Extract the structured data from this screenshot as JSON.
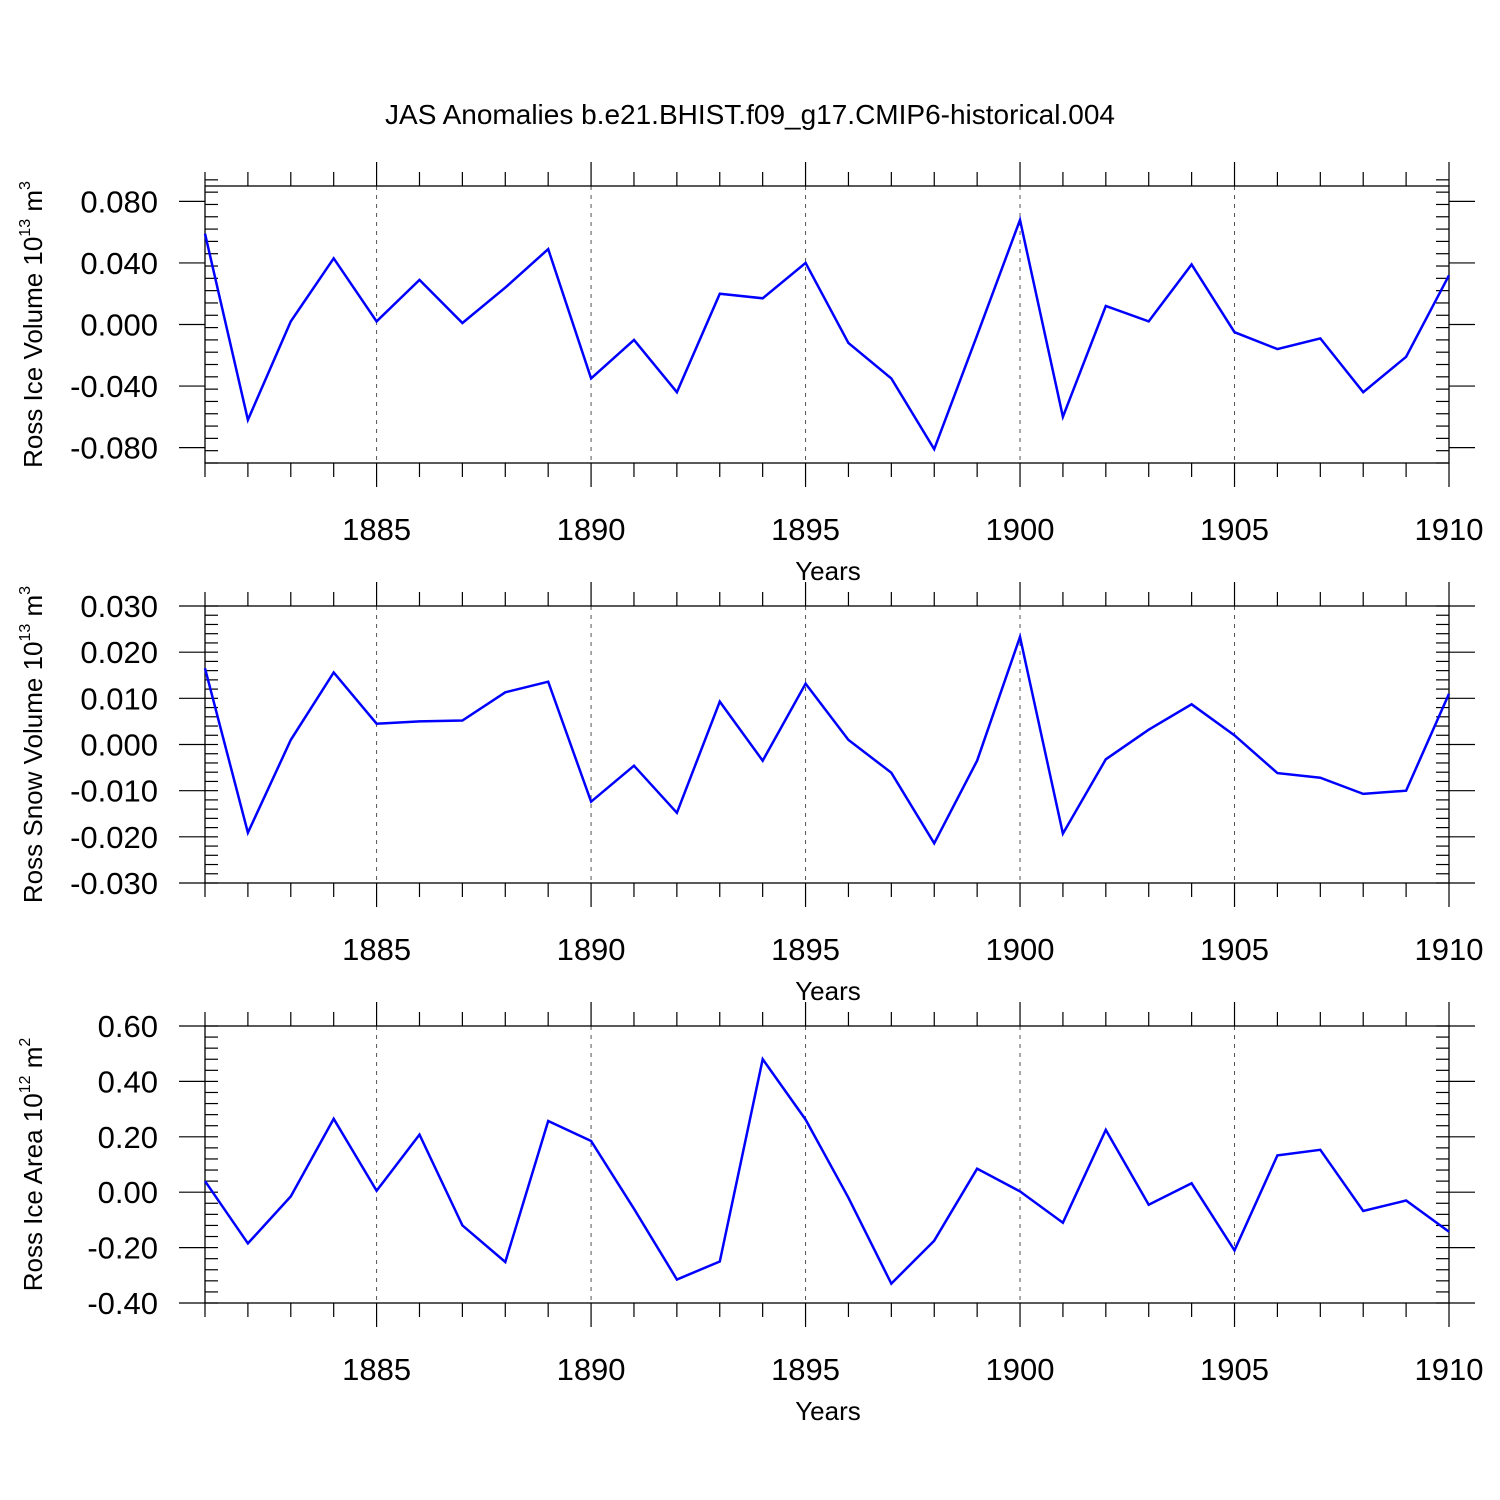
{
  "figure": {
    "title": "JAS Anomalies b.e21.BHIST.f09_g17.CMIP6-historical.004"
  },
  "chart_data": [
    {
      "type": "line",
      "xlabel": "Years",
      "ylabel": "Ross Ice Volume 10",
      "ylabel_exponent": "13",
      "ylabel_unit": "m",
      "ylabel_unit_exponent": "3",
      "xlim": [
        1881,
        1910
      ],
      "ylim": [
        -0.09,
        0.09
      ],
      "xticks": [
        1885,
        1890,
        1895,
        1900,
        1905,
        1910
      ],
      "xtick_labels": [
        "1885",
        "1890",
        "1895",
        "1900",
        "1905",
        "1910"
      ],
      "yticks": [
        -0.08,
        -0.04,
        0.0,
        0.04,
        0.08
      ],
      "ytick_labels": [
        "-0.080",
        "-0.040",
        "0.000",
        "0.040",
        "0.080"
      ],
      "yminor_step": 0.008,
      "grid": "vertical dashed at major x ticks",
      "series_color": "#0000ff",
      "x": [
        1881,
        1882,
        1883,
        1884,
        1885,
        1886,
        1887,
        1888,
        1889,
        1890,
        1891,
        1892,
        1893,
        1894,
        1895,
        1896,
        1897,
        1898,
        1899,
        1900,
        1901,
        1902,
        1903,
        1904,
        1905,
        1906,
        1907,
        1908,
        1909,
        1910
      ],
      "values": [
        0.059,
        -0.062,
        0.002,
        0.043,
        0.002,
        0.029,
        0.001,
        0.024,
        0.049,
        -0.035,
        -0.01,
        -0.044,
        0.02,
        0.017,
        0.04,
        -0.012,
        -0.035,
        -0.081,
        -0.007,
        0.068,
        -0.06,
        0.012,
        0.002,
        0.039,
        -0.005,
        -0.016,
        -0.009,
        -0.044,
        -0.021,
        0.032
      ]
    },
    {
      "type": "line",
      "xlabel": "Years",
      "ylabel": "Ross Snow Volume 10",
      "ylabel_exponent": "13",
      "ylabel_unit": "m",
      "ylabel_unit_exponent": "3",
      "xlim": [
        1881,
        1910
      ],
      "ylim": [
        -0.03,
        0.03
      ],
      "xticks": [
        1885,
        1890,
        1895,
        1900,
        1905,
        1910
      ],
      "xtick_labels": [
        "1885",
        "1890",
        "1895",
        "1900",
        "1905",
        "1910"
      ],
      "yticks": [
        -0.03,
        -0.02,
        -0.01,
        0.0,
        0.01,
        0.02,
        0.03
      ],
      "ytick_labels": [
        "-0.030",
        "-0.020",
        "-0.010",
        "0.000",
        "0.010",
        "0.020",
        "0.030"
      ],
      "yminor_step": 0.002,
      "grid": "vertical dashed at major x ticks",
      "series_color": "#0000ff",
      "x": [
        1881,
        1882,
        1883,
        1884,
        1885,
        1886,
        1887,
        1888,
        1889,
        1890,
        1891,
        1892,
        1893,
        1894,
        1895,
        1896,
        1897,
        1898,
        1899,
        1900,
        1901,
        1902,
        1903,
        1904,
        1905,
        1906,
        1907,
        1908,
        1909,
        1910
      ],
      "values": [
        0.0165,
        -0.0191,
        0.001,
        0.0156,
        0.0045,
        0.005,
        0.0052,
        0.0113,
        0.0136,
        -0.0124,
        -0.0046,
        -0.0148,
        0.0093,
        -0.0035,
        0.0132,
        0.001,
        -0.0061,
        -0.0214,
        -0.0035,
        0.0233,
        -0.0193,
        -0.0032,
        0.0032,
        0.0087,
        0.002,
        -0.0062,
        -0.0072,
        -0.0107,
        -0.01,
        0.011
      ]
    },
    {
      "type": "line",
      "xlabel": "Years",
      "ylabel": "Ross Ice Area 10",
      "ylabel_exponent": "12",
      "ylabel_unit": "m",
      "ylabel_unit_exponent": "2",
      "xlim": [
        1881,
        1910
      ],
      "ylim": [
        -0.4,
        0.6
      ],
      "xticks": [
        1885,
        1890,
        1895,
        1900,
        1905,
        1910
      ],
      "xtick_labels": [
        "1885",
        "1890",
        "1895",
        "1900",
        "1905",
        "1910"
      ],
      "yticks": [
        -0.4,
        -0.2,
        0.0,
        0.2,
        0.4,
        0.6
      ],
      "ytick_labels": [
        "-0.40",
        "-0.20",
        "0.00",
        "0.20",
        "0.40",
        "0.60"
      ],
      "yminor_step": 0.04,
      "grid": "vertical dashed at major x ticks",
      "series_color": "#0000ff",
      "x": [
        1881,
        1882,
        1883,
        1884,
        1885,
        1886,
        1887,
        1888,
        1889,
        1890,
        1891,
        1892,
        1893,
        1894,
        1895,
        1896,
        1897,
        1898,
        1899,
        1900,
        1901,
        1902,
        1903,
        1904,
        1905,
        1906,
        1907,
        1908,
        1909,
        1910
      ],
      "values": [
        0.04,
        -0.185,
        -0.015,
        0.265,
        0.005,
        0.208,
        -0.12,
        -0.252,
        0.257,
        0.185,
        -0.06,
        -0.315,
        -0.25,
        0.48,
        0.262,
        -0.02,
        -0.33,
        -0.175,
        0.085,
        0.003,
        -0.11,
        0.225,
        -0.045,
        0.032,
        -0.21,
        0.133,
        0.153,
        -0.068,
        -0.03,
        -0.143
      ]
    }
  ]
}
